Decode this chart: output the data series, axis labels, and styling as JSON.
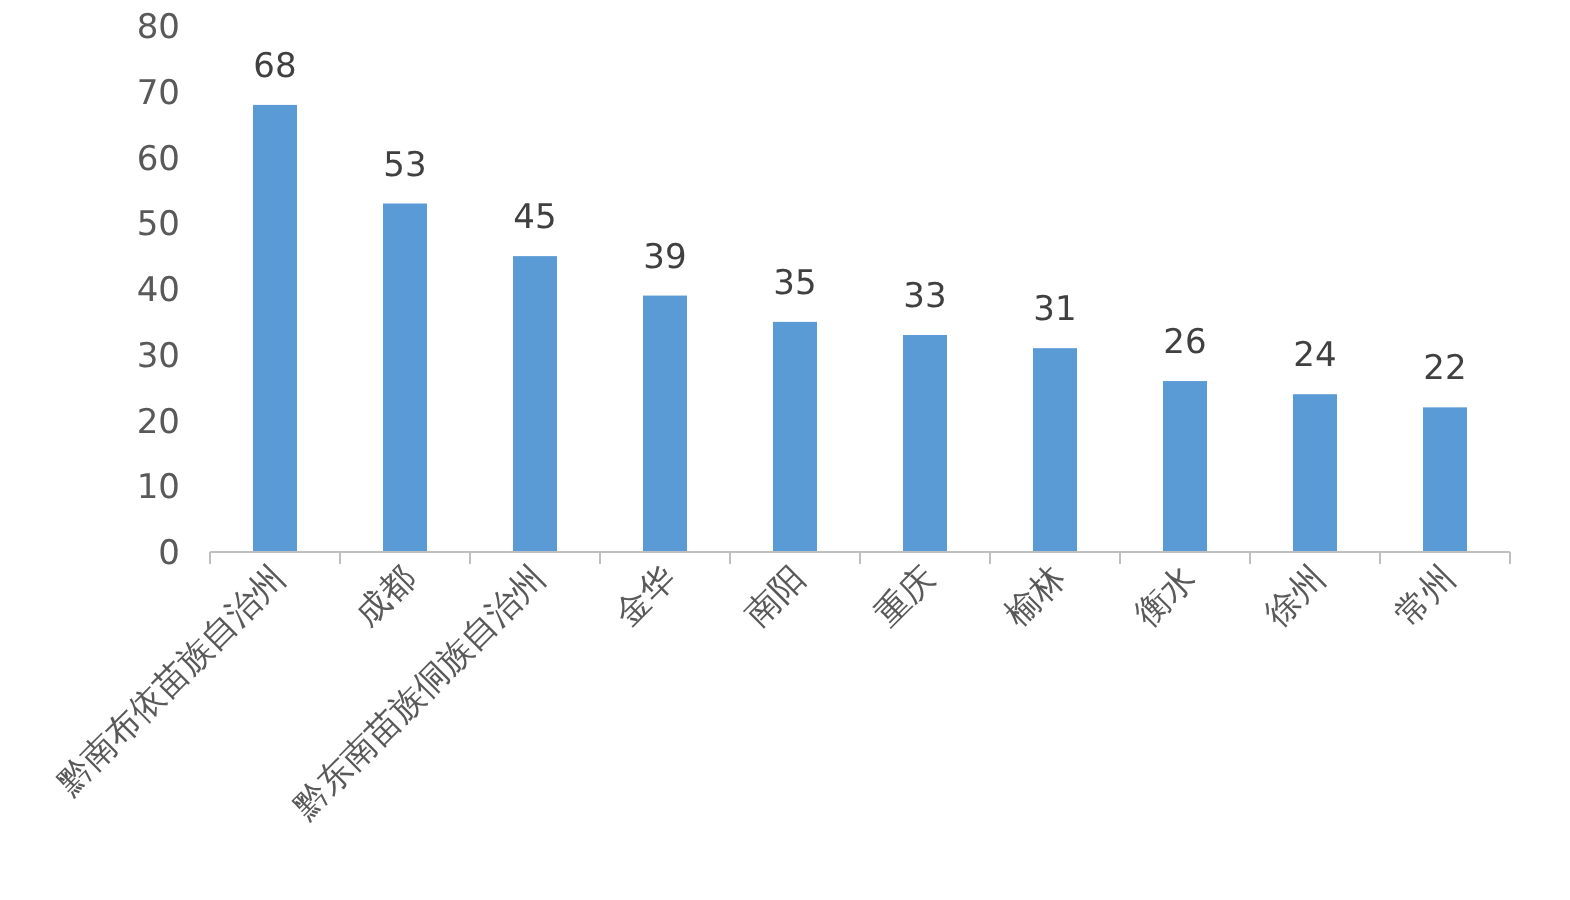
{
  "chart_data": {
    "type": "bar",
    "categories": [
      "黔南布依苗族自治州",
      "成都",
      "黔东南苗族侗族自治州",
      "金华",
      "南阳",
      "重庆",
      "榆林",
      "衡水",
      "徐州",
      "常州"
    ],
    "values": [
      68,
      53,
      45,
      39,
      35,
      33,
      31,
      26,
      24,
      22
    ],
    "color": "#5b9bd5",
    "ylim": [
      0,
      80
    ],
    "yticks": [
      0,
      10,
      20,
      30,
      40,
      50,
      60,
      70,
      80
    ],
    "data_labels": true,
    "grid": false
  }
}
